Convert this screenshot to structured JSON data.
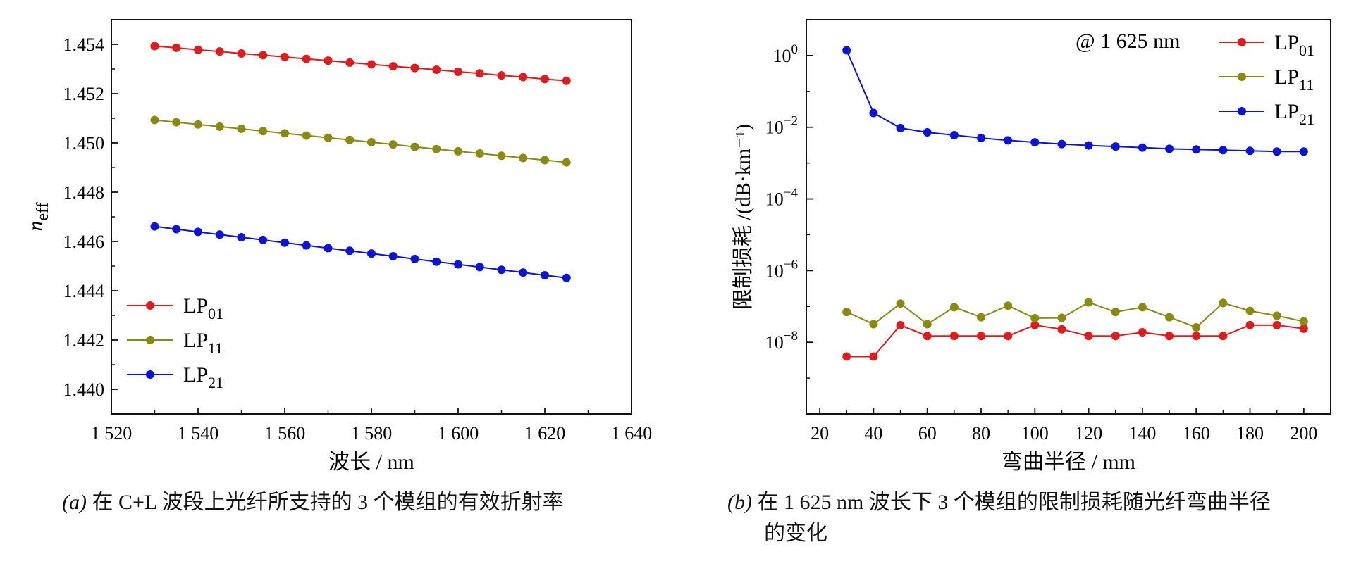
{
  "colors": {
    "lp01": "#e01b1b",
    "lp11": "#8a8a10",
    "lp21": "#0a14d8",
    "axis": "#111111"
  },
  "captions": {
    "a_tag": "(a)",
    "a_text": "在 C+L 波段上光纤所支持的 3 个模组的有效折射率",
    "b_tag": "(b)",
    "b_text_line1": "在 1 625 nm 波长下 3 个模组的限制损耗随光纤弯曲半径",
    "b_text_line2": "的变化"
  },
  "chart_data": [
    {
      "type": "line",
      "xlabel": "波长 / nm",
      "ylabel_main": "n",
      "ylabel_sub": "eff",
      "xlim": [
        1520,
        1640
      ],
      "ylim": [
        1.439,
        1.455
      ],
      "xticks": [
        "1 520",
        "1 540",
        "1 560",
        "1 580",
        "1 600",
        "1 620",
        "1 640"
      ],
      "xtick_values": [
        1520,
        1540,
        1560,
        1580,
        1600,
        1620,
        1640
      ],
      "yticks": [
        "1.440",
        "1.442",
        "1.444",
        "1.446",
        "1.448",
        "1.450",
        "1.452",
        "1.454"
      ],
      "ytick_values": [
        1.44,
        1.442,
        1.444,
        1.446,
        1.448,
        1.45,
        1.452,
        1.454
      ],
      "legend_position": "lower-left",
      "x": [
        1530,
        1535,
        1540,
        1545,
        1550,
        1555,
        1560,
        1565,
        1570,
        1575,
        1580,
        1585,
        1590,
        1595,
        1600,
        1605,
        1610,
        1615,
        1620,
        1625
      ],
      "series": [
        {
          "name_main": "LP",
          "name_sub": "01",
          "color": "#e01b1b",
          "values": [
            1.45393,
            1.45386,
            1.45378,
            1.45371,
            1.45363,
            1.45356,
            1.45349,
            1.45341,
            1.45334,
            1.45326,
            1.45319,
            1.45311,
            1.45304,
            1.45297,
            1.45289,
            1.45282,
            1.45274,
            1.45267,
            1.45259,
            1.45252
          ]
        },
        {
          "name_main": "LP",
          "name_sub": "11",
          "color": "#8a8a10",
          "values": [
            1.45093,
            1.45084,
            1.45075,
            1.45066,
            1.45057,
            1.45048,
            1.45039,
            1.4503,
            1.45021,
            1.45012,
            1.45003,
            1.44994,
            1.44984,
            1.44975,
            1.44966,
            1.44957,
            1.44948,
            1.44939,
            1.4493,
            1.44921
          ]
        },
        {
          "name_main": "LP",
          "name_sub": "21",
          "color": "#0a14d8",
          "values": [
            1.44661,
            1.4465,
            1.44639,
            1.44628,
            1.44617,
            1.44606,
            1.44595,
            1.44584,
            1.44573,
            1.44562,
            1.44551,
            1.4454,
            1.44529,
            1.44518,
            1.44507,
            1.44496,
            1.44485,
            1.44474,
            1.44463,
            1.44452
          ]
        }
      ]
    },
    {
      "type": "line",
      "xlabel": "弯曲半径 / mm",
      "ylabel": "限制损耗 /(dB·km⁻¹)",
      "yscale": "log",
      "xlim": [
        15,
        210
      ],
      "ylim": [
        1e-10,
        10.0
      ],
      "xticks": [
        "20",
        "40",
        "60",
        "80",
        "100",
        "120",
        "140",
        "160",
        "180",
        "200"
      ],
      "xtick_values": [
        20,
        40,
        60,
        80,
        100,
        120,
        140,
        160,
        180,
        200
      ],
      "ytick_exponents": [
        0,
        -2,
        -4,
        -6,
        -8
      ],
      "ytick_base": "10",
      "annotation": "@ 1 625 nm",
      "legend_position": "top-right",
      "x": [
        30,
        40,
        50,
        60,
        70,
        80,
        90,
        100,
        110,
        120,
        130,
        140,
        150,
        160,
        170,
        180,
        190,
        200
      ],
      "series": [
        {
          "name_main": "LP",
          "name_sub": "01",
          "color": "#e01b1b",
          "values": [
            4e-09,
            4e-09,
            3e-08,
            1.5e-08,
            1.5e-08,
            1.5e-08,
            1.5e-08,
            3e-08,
            2.3e-08,
            1.5e-08,
            1.5e-08,
            1.9e-08,
            1.5e-08,
            1.5e-08,
            1.5e-08,
            3e-08,
            3e-08,
            2.4e-08
          ]
        },
        {
          "name_main": "LP",
          "name_sub": "11",
          "color": "#8a8a10",
          "values": [
            7e-08,
            3.2e-08,
            1.2e-07,
            3.2e-08,
            9.5e-08,
            5e-08,
            1.05e-07,
            4.7e-08,
            4.8e-08,
            1.3e-07,
            7e-08,
            9.5e-08,
            5e-08,
            2.6e-08,
            1.25e-07,
            7.5e-08,
            5.5e-08,
            3.8e-08
          ]
        },
        {
          "name_main": "LP",
          "name_sub": "21",
          "color": "#0a14d8",
          "values": [
            1.4,
            0.025,
            0.0095,
            0.0072,
            0.006,
            0.005,
            0.0043,
            0.0038,
            0.0034,
            0.0031,
            0.0029,
            0.0027,
            0.0025,
            0.0024,
            0.0023,
            0.0022,
            0.0021,
            0.0021
          ]
        }
      ]
    }
  ]
}
